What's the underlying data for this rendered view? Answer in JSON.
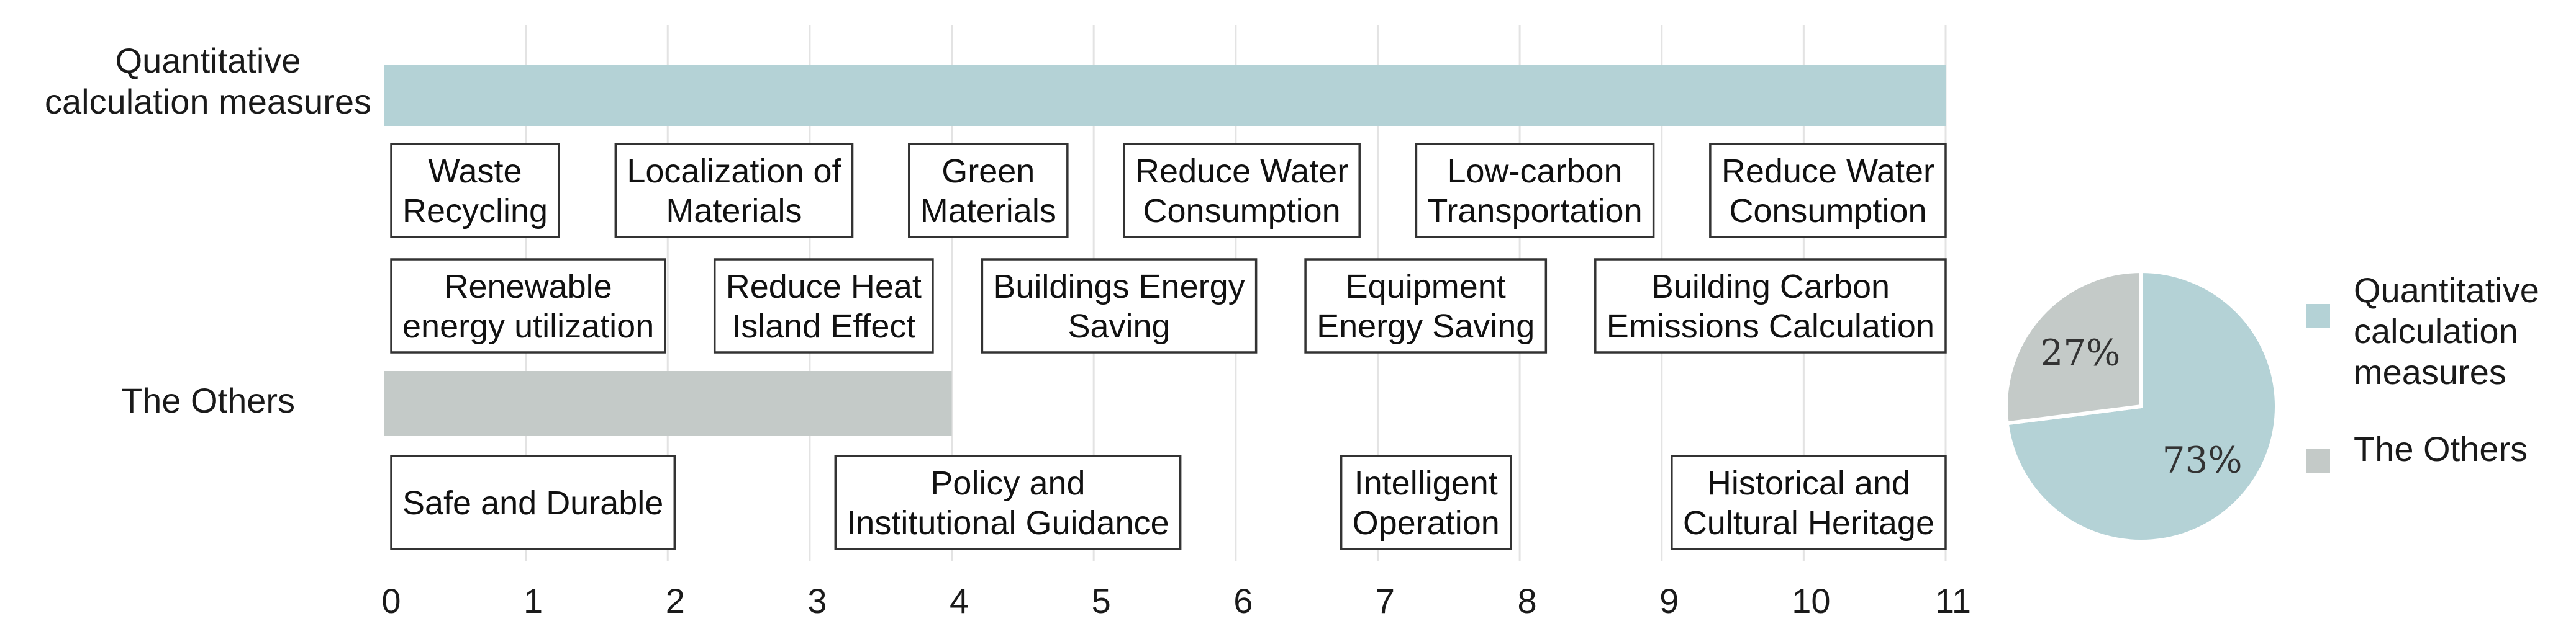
{
  "chart_data": [
    {
      "type": "bar",
      "orientation": "horizontal",
      "title": "",
      "xlabel": "",
      "ylabel": "",
      "categories": [
        "Quantitative calculation measures",
        "The Others"
      ],
      "category_lines": [
        [
          "Quantitative",
          "calculation measures"
        ],
        [
          "The Others"
        ]
      ],
      "values": [
        11,
        4
      ],
      "xlim": [
        0,
        11
      ],
      "xticks": [
        "0",
        "1",
        "2",
        "3",
        "4",
        "5",
        "6",
        "7",
        "8",
        "9",
        "10",
        "11"
      ],
      "grid": "vertical",
      "colors": [
        "#b4d2d6",
        "#c4cac8"
      ],
      "measure_labels": [
        [
          [
            [
              "Waste",
              "Recycling"
            ],
            [
              "Localization of",
              "Materials"
            ],
            [
              "Green",
              "Materials"
            ],
            [
              "Reduce Water",
              "Consumption"
            ],
            [
              "Low-carbon",
              "Transportation"
            ],
            [
              "Reduce Water",
              "Consumption"
            ]
          ],
          [
            [
              "Renewable",
              "energy utilization"
            ],
            [
              "Reduce  Heat",
              "Island Effect"
            ],
            [
              "Buildings Energy",
              "Saving"
            ],
            [
              "Equipment",
              "Energy Saving"
            ],
            [
              "Building Carbon",
              "Emissions Calculation"
            ]
          ]
        ],
        [
          [
            [
              "Safe and Durable"
            ],
            [
              "Policy and",
              "Institutional Guidance"
            ],
            [
              "Intelligent",
              "Operation"
            ],
            [
              "Historical and",
              "Cultural Heritage"
            ]
          ]
        ]
      ]
    },
    {
      "type": "pie",
      "title": "",
      "slices": [
        {
          "label": "Quantitative calculation measures",
          "legend_lines": [
            "Quantitative",
            "calculation",
            "measures"
          ],
          "value": 73,
          "text": "73%",
          "color": "#b4d2d6"
        },
        {
          "label": "The Others",
          "legend_lines": [
            "The Others"
          ],
          "value": 27,
          "text": "27%",
          "color": "#c4cac8"
        }
      ],
      "legend": "right"
    }
  ]
}
